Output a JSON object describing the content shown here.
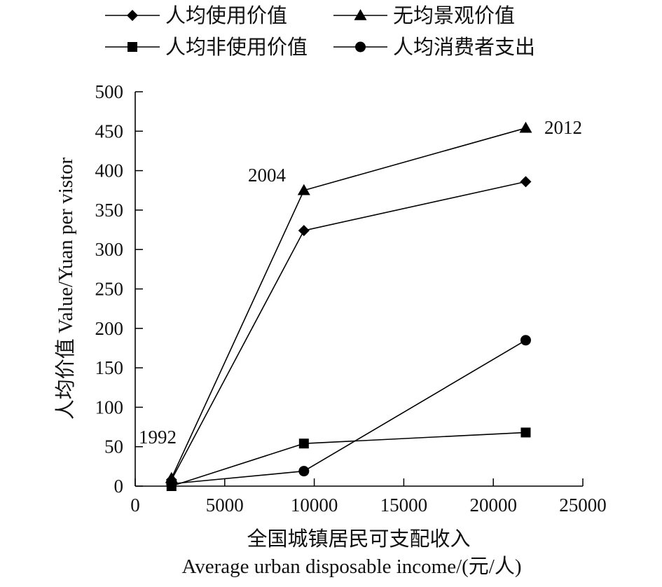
{
  "chart_data": {
    "type": "line",
    "title": "",
    "xlabel": "全国城镇居民可支配收入",
    "xlabel_en": "Average urban disposable income/(元/人)",
    "ylabel": "人均价值 Value/Yuan per  vistor",
    "xlim": [
      0,
      25000
    ],
    "ylim": [
      0,
      500
    ],
    "x_ticks": [
      "0",
      "5000",
      "10000",
      "15000",
      "20000",
      "25000"
    ],
    "y_ticks": [
      "0",
      "50",
      "100",
      "150",
      "200",
      "250",
      "300",
      "350",
      "400",
      "450",
      "500"
    ],
    "x_tick_values": [
      0,
      5000,
      10000,
      15000,
      20000,
      25000
    ],
    "y_tick_values": [
      0,
      50,
      100,
      150,
      200,
      250,
      300,
      350,
      400,
      450,
      500
    ],
    "grid": false,
    "legend_position": "top",
    "x": [
      2027,
      9422,
      21810
    ],
    "series": [
      {
        "name": "人均使用价值",
        "marker": "diamond",
        "values": [
          8,
          324,
          386
        ]
      },
      {
        "name": "无均景观价值",
        "marker": "triangle",
        "values": [
          10,
          375,
          454
        ]
      },
      {
        "name": "人均非使用价值",
        "marker": "square",
        "values": [
          0,
          54,
          68
        ]
      },
      {
        "name": "人均消费者支出",
        "marker": "circle",
        "values": [
          3,
          19,
          185
        ]
      }
    ],
    "annotations": [
      {
        "text": "1992"
      },
      {
        "text": "2004"
      },
      {
        "text": "2012"
      }
    ]
  }
}
